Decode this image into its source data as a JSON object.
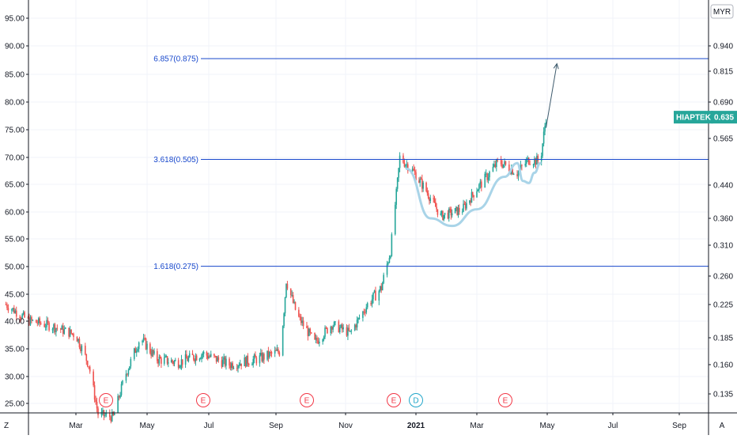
{
  "chart_data": {
    "type": "candlestick",
    "symbol": "HIAPTEK",
    "last_price": "0.635",
    "currency": "MYR",
    "log_scale": true,
    "left_axis_labels": [
      "95.00",
      "90.00",
      "85.00",
      "80.00",
      "75.00",
      "70.00",
      "65.00",
      "60.00",
      "55.00",
      "50.00",
      "45.00",
      "40.00",
      "35.00",
      "30.00",
      "25.00"
    ],
    "right_axis_labels": [
      "0.940",
      "0.815",
      "0.690",
      "0.565",
      "0.440",
      "0.360",
      "0.310",
      "0.260",
      "0.225",
      "0.185",
      "0.160",
      "0.135"
    ],
    "x_tick_labels": [
      "Mar",
      "May",
      "Jul",
      "Sep",
      "Nov",
      "2021",
      "Mar",
      "May",
      "Jul",
      "Sep"
    ],
    "corner_left": "Z",
    "corner_right": "A",
    "fib_levels": [
      {
        "label": "6.857(0.875)",
        "value": 0.875
      },
      {
        "label": "3.618(0.505)",
        "value": 0.505
      },
      {
        "label": "1.618(0.275)",
        "value": 0.275
      }
    ],
    "events": [
      {
        "letter": "E",
        "type": "earnings",
        "color": "#f23645"
      },
      {
        "letter": "E",
        "type": "earnings",
        "color": "#f23645"
      },
      {
        "letter": "E",
        "type": "earnings",
        "color": "#f23645"
      },
      {
        "letter": "E",
        "type": "earnings",
        "color": "#f23645"
      },
      {
        "letter": "D",
        "type": "dividend",
        "color": "#22a6c9"
      },
      {
        "letter": "E",
        "type": "earnings",
        "color": "#f23645"
      }
    ],
    "price_path": [
      [
        "2020-01-01",
        0.225
      ],
      [
        "2020-01-20",
        0.205
      ],
      [
        "2020-02-10",
        0.198
      ],
      [
        "2020-03-01",
        0.188
      ],
      [
        "2020-03-12",
        0.16
      ],
      [
        "2020-03-20",
        0.12
      ],
      [
        "2020-04-02",
        0.118
      ],
      [
        "2020-04-12",
        0.15
      ],
      [
        "2020-04-25",
        0.185
      ],
      [
        "2020-05-10",
        0.165
      ],
      [
        "2020-06-01",
        0.162
      ],
      [
        "2020-06-25",
        0.17
      ],
      [
        "2020-07-20",
        0.16
      ],
      [
        "2020-08-15",
        0.165
      ],
      [
        "2020-09-05",
        0.172
      ],
      [
        "2020-09-10",
        0.255
      ],
      [
        "2020-09-20",
        0.21
      ],
      [
        "2020-10-05",
        0.18
      ],
      [
        "2020-10-20",
        0.2
      ],
      [
        "2020-11-05",
        0.19
      ],
      [
        "2020-11-20",
        0.225
      ],
      [
        "2020-12-02",
        0.245
      ],
      [
        "2020-12-10",
        0.3
      ],
      [
        "2020-12-18",
        0.51
      ],
      [
        "2020-12-28",
        0.48
      ],
      [
        "2021-01-10",
        0.43
      ],
      [
        "2021-01-25",
        0.365
      ],
      [
        "2021-02-15",
        0.38
      ],
      [
        "2021-03-01",
        0.43
      ],
      [
        "2021-03-20",
        0.5
      ],
      [
        "2021-04-05",
        0.47
      ],
      [
        "2021-04-15",
        0.505
      ],
      [
        "2021-04-25",
        0.5
      ],
      [
        "2021-04-30",
        0.635
      ]
    ],
    "cup_curves": [
      [
        [
          "2020-12-24",
          0.48
        ],
        [
          "2021-01-15",
          0.36
        ],
        [
          "2021-02-05",
          0.345
        ],
        [
          "2021-03-01",
          0.38
        ],
        [
          "2021-03-25",
          0.46
        ],
        [
          "2021-04-05",
          0.495
        ]
      ],
      [
        [
          "2021-04-05",
          0.495
        ],
        [
          "2021-04-10",
          0.45
        ],
        [
          "2021-04-15",
          0.445
        ],
        [
          "2021-04-20",
          0.47
        ],
        [
          "2021-04-25",
          0.495
        ]
      ]
    ],
    "projection_arrow": [
      [
        "2021-04-30",
        0.6
      ],
      [
        "2021-05-10",
        0.85
      ]
    ]
  }
}
